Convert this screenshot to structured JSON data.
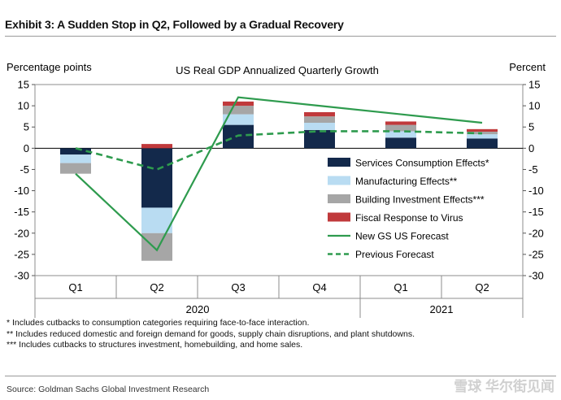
{
  "exhibit_title": "Exhibit 3: A Sudden Stop in Q2, Followed by a Gradual Recovery",
  "footnotes": [
    "* Includes cutbacks to consumption categories requiring face-to-face interaction.",
    "** Includes reduced domestic and foreign demand for goods, supply chain disruptions, and plant shutdowns.",
    "*** Includes cutbacks to structures investment, homebuilding, and home sales."
  ],
  "source": "Source: Goldman Sachs Global Investment Research",
  "watermark": "雪球 华尔街见闻",
  "chart_data": {
    "type": "bar",
    "stacked": true,
    "title": "US Real GDP Annualized Quarterly Growth",
    "ylabel_left": "Percentage points",
    "ylabel_right": "Percent",
    "ylim": [
      -30,
      15
    ],
    "yticks": [
      15,
      10,
      5,
      0,
      -5,
      -10,
      -15,
      -20,
      -25,
      -30
    ],
    "categories": [
      "Q1",
      "Q2",
      "Q3",
      "Q4",
      "Q1",
      "Q2"
    ],
    "year_labels": [
      "2020",
      "2021"
    ],
    "grid": false,
    "legend_position": "right",
    "series": [
      {
        "name": "Services Consumption Effects*",
        "kind": "bar",
        "color": "#13294b",
        "values": [
          -1.5,
          -14,
          5.5,
          4.3,
          2.5,
          2.3
        ]
      },
      {
        "name": "Manufacturing Effects**",
        "kind": "bar",
        "color": "#b9dcf2",
        "values": [
          -2.0,
          -6,
          2.5,
          1.7,
          1.5,
          1.0
        ]
      },
      {
        "name": "Building Investment Effects***",
        "kind": "bar",
        "color": "#a6a6a6",
        "values": [
          -2.5,
          -6.5,
          2.0,
          1.5,
          1.5,
          0.6
        ]
      },
      {
        "name": "Fiscal Response to Virus",
        "kind": "bar",
        "color": "#c0393b",
        "values": [
          0,
          1.0,
          1.0,
          1.0,
          0.8,
          0.6
        ]
      },
      {
        "name": "New GS US Forecast",
        "kind": "line",
        "color": "#2e9b4e",
        "dashed": false,
        "values": [
          -6,
          -24,
          12,
          10,
          8,
          6
        ]
      },
      {
        "name": "Previous Forecast",
        "kind": "line",
        "color": "#2e9b4e",
        "dashed": true,
        "values": [
          0,
          -5,
          3,
          4,
          4,
          3.5
        ]
      }
    ]
  }
}
